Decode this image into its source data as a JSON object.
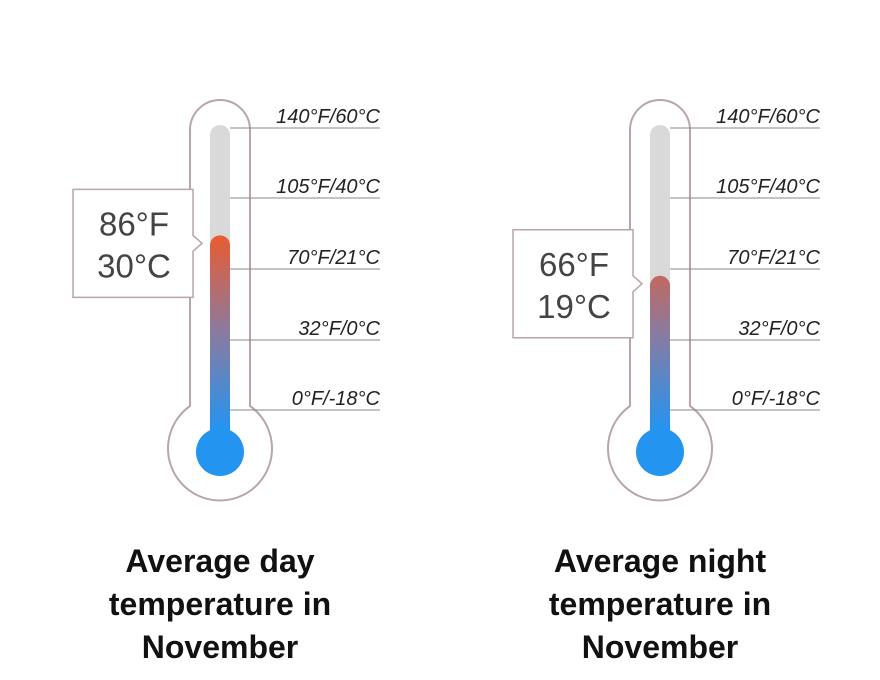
{
  "chart_data": [
    {
      "type": "thermometer",
      "title": "Average day temperature in November",
      "scale_labels": [
        "140°F/60°C",
        "105°F/40°C",
        "70°F/21°C",
        "32°F/0°C",
        "0°F/-18°C"
      ],
      "scale_celsius": [
        60,
        40,
        21,
        0,
        -18
      ],
      "value_celsius": 30,
      "reading_f": "86°F",
      "reading_c": "30°C"
    },
    {
      "type": "thermometer",
      "title": "Average night temperature in November",
      "scale_labels": [
        "140°F/60°C",
        "105°F/40°C",
        "70°F/21°C",
        "32°F/0°C",
        "0°F/-18°C"
      ],
      "scale_celsius": [
        60,
        40,
        21,
        0,
        -18
      ],
      "value_celsius": 19,
      "reading_f": "66°F",
      "reading_c": "19°C"
    }
  ],
  "colors": {
    "outline": "#b9a5a5",
    "tube": "#d9d9d9",
    "hot": "#ee5a2a",
    "mid": "#8d7a9e",
    "cold": "#2394f0",
    "tick": "#888888"
  }
}
